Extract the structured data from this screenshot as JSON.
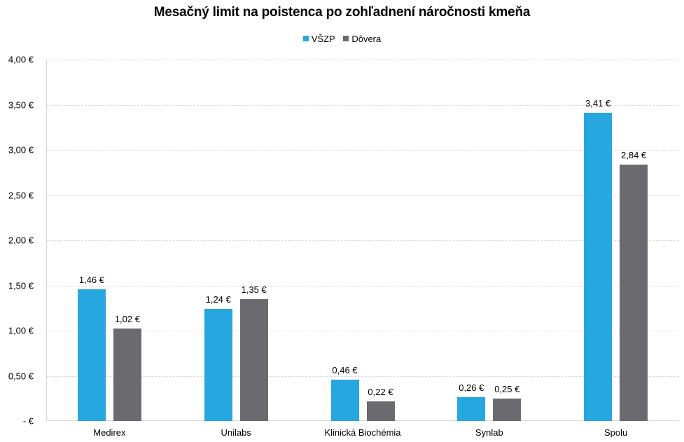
{
  "chart_data": {
    "type": "bar",
    "title": "Mesačný limit na poistenca po zohľadnení náročnosti kmeňa",
    "xlabel": "",
    "ylabel": "",
    "categories": [
      "Medirex",
      "Unilabs",
      "Klinická Biochémia",
      "Synlab",
      "Spolu"
    ],
    "series": [
      {
        "name": "VŠZP",
        "color": "#26a7df",
        "values": [
          1.46,
          1.24,
          0.46,
          0.26,
          3.41
        ],
        "labels": [
          "1,46 €",
          "1,24 €",
          "0,46 €",
          "0,26 €",
          "3,41 €"
        ]
      },
      {
        "name": "Dôvera",
        "color": "#6b6b6f",
        "values": [
          1.02,
          1.35,
          0.22,
          0.25,
          2.84
        ],
        "labels": [
          "1,02 €",
          "1,35 €",
          "0,22 €",
          "0,25 €",
          "2,84 €"
        ]
      }
    ],
    "ylim": [
      0,
      4
    ],
    "yticks": [
      0,
      0.5,
      1,
      1.5,
      2,
      2.5,
      3,
      3.5,
      4
    ],
    "ytick_labels": [
      "-  €",
      "0,50 €",
      "1,00 €",
      "1,50 €",
      "2,00 €",
      "2,50 €",
      "3,00 €",
      "3,50 €",
      "4,00 €"
    ],
    "grid": true,
    "legend_position": "top"
  }
}
